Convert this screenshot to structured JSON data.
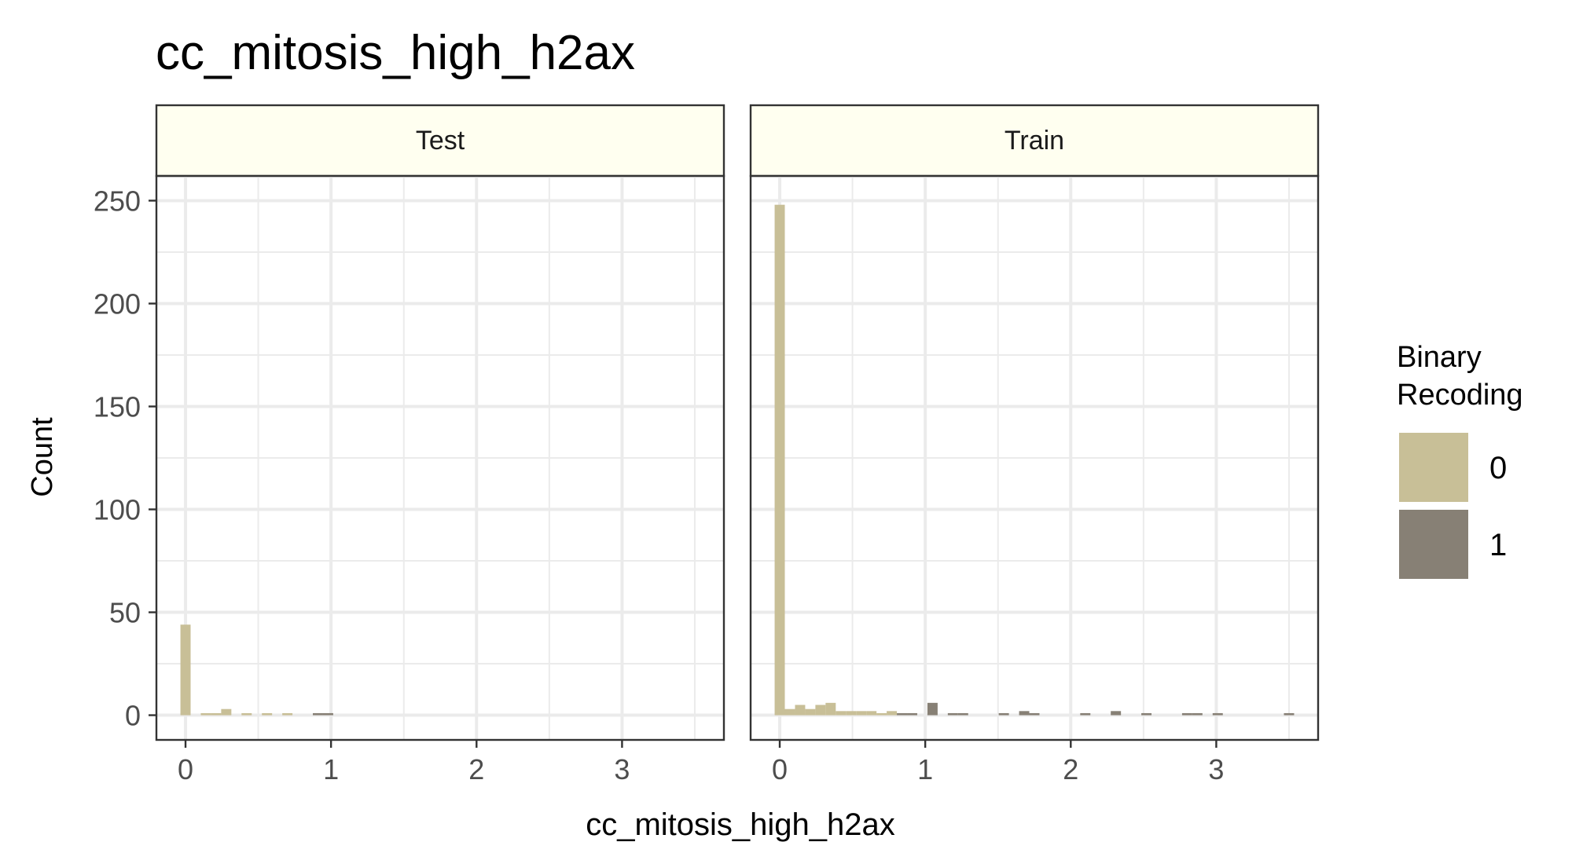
{
  "chart_data": {
    "type": "bar",
    "title": "cc_mitosis_high_h2ax",
    "xlabel": "cc_mitosis_high_h2ax",
    "ylabel": "Count",
    "xlim": [
      -0.2,
      3.7
    ],
    "ylim": [
      -12,
      262
    ],
    "x_ticks": [
      0,
      1,
      2,
      3
    ],
    "y_ticks": [
      0,
      50,
      100,
      150,
      200,
      250
    ],
    "bin_width": 0.07,
    "grid": true,
    "legend": {
      "title_lines": [
        "Binary",
        "Recoding"
      ],
      "position": "right",
      "entries": [
        {
          "label": "0",
          "color": "#c8bf97"
        },
        {
          "label": "1",
          "color": "#878075"
        }
      ]
    },
    "strip_fill": "#fffff0",
    "panels": [
      {
        "name": "Test",
        "series": [
          {
            "name": "0",
            "color": "#c8bf97",
            "bins": [
              {
                "x": 0.0,
                "count": 44
              },
              {
                "x": 0.14,
                "count": 1
              },
              {
                "x": 0.21,
                "count": 1
              },
              {
                "x": 0.28,
                "count": 3
              },
              {
                "x": 0.42,
                "count": 1
              },
              {
                "x": 0.56,
                "count": 1
              },
              {
                "x": 0.7,
                "count": 1
              }
            ]
          },
          {
            "name": "1",
            "color": "#878075",
            "bins": [
              {
                "x": 0.91,
                "count": 1
              },
              {
                "x": 0.98,
                "count": 1
              }
            ]
          }
        ]
      },
      {
        "name": "Train",
        "series": [
          {
            "name": "0",
            "color": "#c8bf97",
            "bins": [
              {
                "x": 0.0,
                "count": 248
              },
              {
                "x": 0.07,
                "count": 3
              },
              {
                "x": 0.14,
                "count": 5
              },
              {
                "x": 0.21,
                "count": 3
              },
              {
                "x": 0.28,
                "count": 5
              },
              {
                "x": 0.35,
                "count": 6
              },
              {
                "x": 0.42,
                "count": 2
              },
              {
                "x": 0.49,
                "count": 2
              },
              {
                "x": 0.56,
                "count": 2
              },
              {
                "x": 0.63,
                "count": 2
              },
              {
                "x": 0.7,
                "count": 1
              },
              {
                "x": 0.77,
                "count": 2
              }
            ]
          },
          {
            "name": "1",
            "color": "#878075",
            "bins": [
              {
                "x": 0.84,
                "count": 1
              },
              {
                "x": 0.91,
                "count": 1
              },
              {
                "x": 1.05,
                "count": 6
              },
              {
                "x": 1.19,
                "count": 1
              },
              {
                "x": 1.26,
                "count": 1
              },
              {
                "x": 1.54,
                "count": 1
              },
              {
                "x": 1.68,
                "count": 2
              },
              {
                "x": 1.75,
                "count": 1
              },
              {
                "x": 2.1,
                "count": 1
              },
              {
                "x": 2.31,
                "count": 2
              },
              {
                "x": 2.52,
                "count": 1
              },
              {
                "x": 2.8,
                "count": 1
              },
              {
                "x": 2.87,
                "count": 1
              },
              {
                "x": 3.01,
                "count": 1
              },
              {
                "x": 3.5,
                "count": 1
              }
            ]
          }
        ]
      }
    ]
  }
}
